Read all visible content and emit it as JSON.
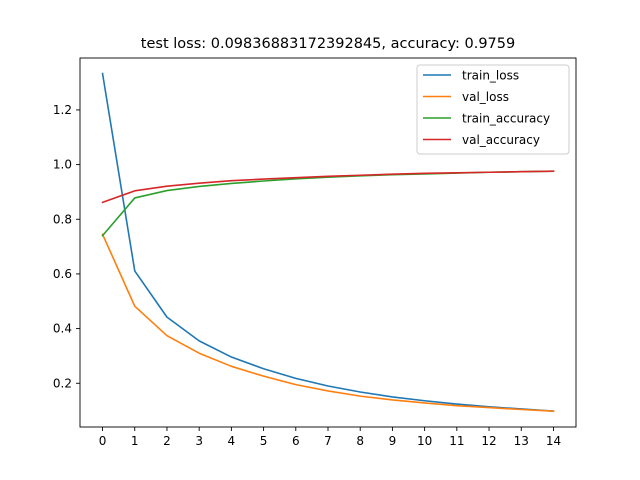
{
  "chart_data": {
    "type": "line",
    "title": "test loss: 0.09836883172392845, accuracy: 0.9759",
    "xlabel": "",
    "ylabel": "",
    "x": [
      0,
      1,
      2,
      3,
      4,
      5,
      6,
      7,
      8,
      9,
      10,
      11,
      12,
      13,
      14
    ],
    "xticks": [
      "0",
      "1",
      "2",
      "3",
      "4",
      "5",
      "6",
      "7",
      "8",
      "9",
      "10",
      "11",
      "12",
      "13",
      "14"
    ],
    "yticks": [
      "0.2",
      "0.4",
      "0.6",
      "0.8",
      "1.0",
      "1.2"
    ],
    "xlim": [
      -0.7,
      14.7
    ],
    "ylim": [
      0.04,
      1.39
    ],
    "grid": false,
    "legend_position": "top-right",
    "series": [
      {
        "name": "train_loss",
        "color": "#1f77b4",
        "values": [
          1.333,
          0.611,
          0.442,
          0.355,
          0.296,
          0.253,
          0.218,
          0.19,
          0.168,
          0.15,
          0.136,
          0.124,
          0.114,
          0.106,
          0.098
        ]
      },
      {
        "name": "val_loss",
        "color": "#ff7f0e",
        "values": [
          0.745,
          0.482,
          0.374,
          0.31,
          0.262,
          0.226,
          0.195,
          0.172,
          0.153,
          0.139,
          0.128,
          0.118,
          0.111,
          0.104,
          0.098
        ]
      },
      {
        "name": "train_accuracy",
        "color": "#2ca02c",
        "values": [
          0.74,
          0.878,
          0.905,
          0.92,
          0.931,
          0.94,
          0.948,
          0.954,
          0.959,
          0.963,
          0.966,
          0.969,
          0.972,
          0.974,
          0.976
        ]
      },
      {
        "name": "val_accuracy",
        "color": "#d62728",
        "values": [
          0.862,
          0.904,
          0.921,
          0.932,
          0.941,
          0.947,
          0.952,
          0.957,
          0.961,
          0.965,
          0.968,
          0.97,
          0.972,
          0.974,
          0.976
        ]
      }
    ]
  }
}
